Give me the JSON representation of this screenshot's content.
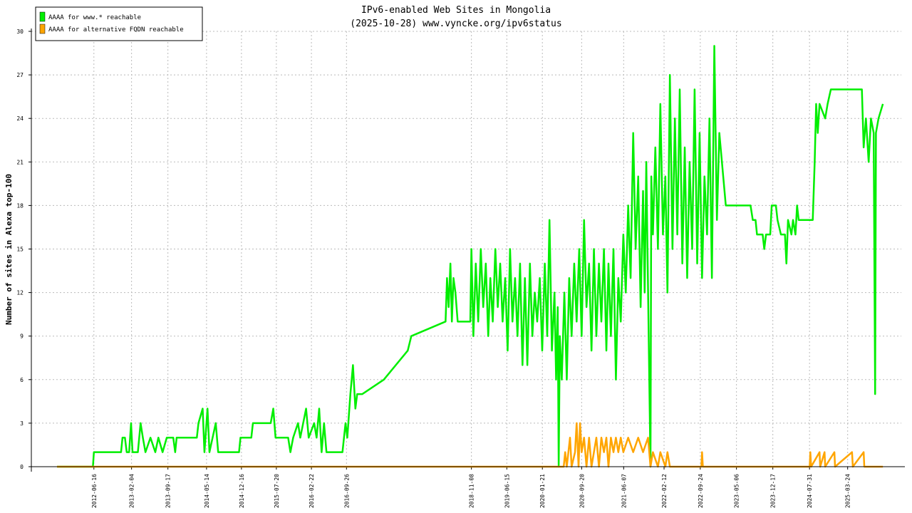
{
  "chart_data": {
    "type": "line",
    "title": "IPv6-enabled Web Sites in Mongolia",
    "subtitle": "(2025-10-28) www.vyncke.org/ipv6status",
    "y_label": "Number of sites in Alexa top-100",
    "xlim": [
      "2011-05-26",
      "2026-02-19"
    ],
    "xticks": [
      "2012-06-16",
      "2013-02-04",
      "2013-09-17",
      "2014-05-14",
      "2014-12-16",
      "2015-07-20",
      "2016-02-22",
      "2016-09-26",
      "2018-11-08",
      "2019-06-15",
      "2020-01-21",
      "2020-09-20",
      "2021-06-07",
      "2022-02-12",
      "2022-09-24",
      "2023-05-06",
      "2023-12-17",
      "2024-07-31",
      "2025-03-24"
    ],
    "ylim": [
      0,
      30
    ],
    "yticks": [
      0,
      3,
      6,
      9,
      12,
      15,
      18,
      21,
      24,
      27,
      30
    ],
    "grid": true,
    "legend": "top-left",
    "series": [
      {
        "name": "AAAA for www.* reachable",
        "color": "#00ee00",
        "x": [
          "2011-11-01",
          "2012-06-10",
          "2012-06-16",
          "2012-12-01",
          "2012-12-10",
          "2012-12-25",
          "2013-01-05",
          "2013-01-20",
          "2013-02-01",
          "2013-02-10",
          "2013-03-15",
          "2013-04-01",
          "2013-04-15",
          "2013-05-01",
          "2013-06-01",
          "2013-07-01",
          "2013-07-20",
          "2013-08-15",
          "2013-09-10",
          "2013-10-20",
          "2013-11-01",
          "2013-11-10",
          "2014-03-15",
          "2014-03-25",
          "2014-04-20",
          "2014-05-01",
          "2014-05-20",
          "2014-06-01",
          "2014-07-10",
          "2014-07-25",
          "2014-12-01",
          "2014-12-10",
          "2015-02-15",
          "2015-02-25",
          "2015-06-15",
          "2015-07-01",
          "2015-07-15",
          "2015-10-01",
          "2015-10-15",
          "2015-11-01",
          "2015-12-01",
          "2015-12-15",
          "2016-01-20",
          "2016-02-05",
          "2016-03-10",
          "2016-03-25",
          "2016-04-10",
          "2016-04-25",
          "2016-05-10",
          "2016-05-25",
          "2016-06-10",
          "2016-09-01",
          "2016-09-20",
          "2016-10-01",
          "2016-10-20",
          "2016-11-05",
          "2016-11-20",
          "2016-12-01",
          "2017-01-01",
          "2017-05-15",
          "2017-10-10",
          "2017-11-01",
          "2018-06-01",
          "2018-06-10",
          "2018-06-20",
          "2018-07-01",
          "2018-07-10",
          "2018-07-20",
          "2018-08-01",
          "2018-08-15",
          "2018-11-01",
          "2018-11-08",
          "2018-11-20",
          "2018-12-05",
          "2018-12-20",
          "2019-01-05",
          "2019-01-20",
          "2019-02-05",
          "2019-02-20",
          "2019-03-05",
          "2019-03-20",
          "2019-04-05",
          "2019-04-20",
          "2019-05-05",
          "2019-05-20",
          "2019-06-05",
          "2019-06-20",
          "2019-07-05",
          "2019-07-20",
          "2019-08-05",
          "2019-08-20",
          "2019-09-05",
          "2019-09-20",
          "2019-10-05",
          "2019-10-20",
          "2019-11-05",
          "2019-11-20",
          "2019-12-05",
          "2019-12-20",
          "2020-01-05",
          "2020-01-20",
          "2020-02-05",
          "2020-02-20",
          "2020-03-05",
          "2020-03-20",
          "2020-04-05",
          "2020-04-15",
          "2020-04-25",
          "2020-05-01",
          "2020-05-08",
          "2020-05-20",
          "2020-06-05",
          "2020-06-20",
          "2020-07-05",
          "2020-07-20",
          "2020-08-05",
          "2020-08-20",
          "2020-09-05",
          "2020-09-20",
          "2020-10-05",
          "2020-10-20",
          "2020-11-05",
          "2020-11-20",
          "2020-12-05",
          "2020-12-20",
          "2021-01-05",
          "2021-01-20",
          "2021-02-05",
          "2021-02-20",
          "2021-03-05",
          "2021-03-20",
          "2021-04-05",
          "2021-04-20",
          "2021-05-05",
          "2021-05-20",
          "2021-06-05",
          "2021-06-20",
          "2021-07-05",
          "2021-07-20",
          "2021-08-05",
          "2021-08-20",
          "2021-09-05",
          "2021-09-20",
          "2021-10-05",
          "2021-10-15",
          "2021-10-25",
          "2021-11-20",
          "2021-11-25",
          "2021-12-05",
          "2021-12-20",
          "2022-01-05",
          "2022-01-20",
          "2022-02-05",
          "2022-02-20",
          "2022-03-05",
          "2022-03-20",
          "2022-04-05",
          "2022-04-20",
          "2022-05-05",
          "2022-05-20",
          "2022-06-05",
          "2022-06-20",
          "2022-07-05",
          "2022-07-20",
          "2022-08-05",
          "2022-08-20",
          "2022-09-05",
          "2022-09-20",
          "2022-10-05",
          "2022-10-20",
          "2022-11-05",
          "2022-11-20",
          "2022-12-05",
          "2022-12-20",
          "2023-01-05",
          "2023-01-20",
          "2023-03-01",
          "2023-08-01",
          "2023-08-15",
          "2023-09-01",
          "2023-09-10",
          "2023-10-15",
          "2023-10-25",
          "2023-11-05",
          "2023-12-01",
          "2023-12-10",
          "2024-01-05",
          "2024-01-15",
          "2024-02-05",
          "2024-03-01",
          "2024-03-10",
          "2024-03-20",
          "2024-04-10",
          "2024-04-20",
          "2024-05-05",
          "2024-05-15",
          "2024-05-25",
          "2024-08-20",
          "2024-09-01",
          "2024-09-10",
          "2024-09-20",
          "2024-10-01",
          "2024-11-05",
          "2024-11-20",
          "2024-12-10",
          "2025-06-20",
          "2025-07-01",
          "2025-07-15",
          "2025-08-01",
          "2025-08-15",
          "2025-09-01",
          "2025-09-10",
          "2025-09-15",
          "2025-10-01",
          "2025-10-28"
        ],
        "values": [
          0,
          0,
          1,
          1,
          2,
          2,
          1,
          1,
          3,
          1,
          1,
          3,
          2,
          1,
          2,
          1,
          2,
          1,
          2,
          2,
          1,
          2,
          2,
          3,
          4,
          1,
          4,
          1,
          3,
          1,
          1,
          2,
          2,
          3,
          3,
          4,
          2,
          2,
          1,
          2,
          3,
          2,
          4,
          2,
          3,
          2,
          4,
          1,
          3,
          1,
          1,
          1,
          3,
          2,
          5,
          7,
          4,
          5,
          5,
          6,
          8,
          9,
          10,
          13,
          11,
          14,
          10,
          13,
          12,
          10,
          10,
          15,
          9,
          14,
          10,
          15,
          11,
          14,
          9,
          13,
          10,
          15,
          11,
          14,
          10,
          13,
          8,
          15,
          10,
          13,
          9,
          14,
          7,
          13,
          7,
          14,
          9,
          12,
          10,
          13,
          8,
          14,
          9,
          17,
          8,
          12,
          6,
          11,
          0,
          9,
          6,
          12,
          6,
          13,
          9,
          14,
          10,
          15,
          9,
          17,
          11,
          14,
          8,
          15,
          9,
          14,
          10,
          15,
          8,
          14,
          9,
          15,
          6,
          13,
          10,
          16,
          12,
          18,
          13,
          23,
          15,
          20,
          11,
          19,
          12,
          21,
          0,
          20,
          16,
          22,
          15,
          25,
          16,
          20,
          12,
          27,
          15,
          24,
          16,
          26,
          14,
          22,
          13,
          21,
          15,
          26,
          14,
          23,
          13,
          20,
          16,
          24,
          13,
          29,
          17,
          23,
          18,
          18,
          17,
          17,
          16,
          16,
          15,
          16,
          16,
          18,
          18,
          17,
          16,
          16,
          14,
          17,
          16,
          17,
          16,
          18,
          17,
          17,
          21,
          25,
          23,
          25,
          24,
          25,
          26,
          26,
          22,
          24,
          21,
          24,
          23,
          5,
          23,
          24,
          25
        ]
      },
      {
        "name": "AAAA for alternative FQDN reachable",
        "color": "#ffa500",
        "x": [
          "2011-11-01",
          "2020-06-01",
          "2020-06-10",
          "2020-06-20",
          "2020-07-10",
          "2020-07-20",
          "2020-08-10",
          "2020-08-20",
          "2020-09-01",
          "2020-09-10",
          "2020-09-20",
          "2020-10-05",
          "2020-10-20",
          "2020-11-05",
          "2020-11-20",
          "2020-12-05",
          "2020-12-20",
          "2021-01-05",
          "2021-01-20",
          "2021-02-05",
          "2021-02-20",
          "2021-03-05",
          "2021-03-20",
          "2021-04-05",
          "2021-04-20",
          "2021-05-05",
          "2021-05-20",
          "2021-06-05",
          "2021-07-05",
          "2021-08-05",
          "2021-09-05",
          "2021-10-05",
          "2021-11-05",
          "2021-11-20",
          "2021-12-05",
          "2022-01-05",
          "2022-01-20",
          "2022-02-20",
          "2022-03-05",
          "2022-03-20",
          "2022-10-01",
          "2022-10-05",
          "2022-10-10",
          "2024-08-01",
          "2024-08-05",
          "2024-08-10",
          "2024-10-01",
          "2024-10-05",
          "2024-11-01",
          "2024-11-05",
          "2025-01-01",
          "2025-01-05",
          "2025-04-20",
          "2025-04-25",
          "2025-07-01",
          "2025-07-05",
          "2025-10-28"
        ],
        "values": [
          0,
          0,
          1,
          0,
          2,
          0,
          1,
          3,
          0,
          3,
          1,
          2,
          0,
          2,
          0,
          1,
          2,
          0,
          2,
          1,
          2,
          0,
          2,
          1,
          2,
          1,
          2,
          1,
          2,
          1,
          2,
          1,
          2,
          0,
          1,
          0,
          1,
          0,
          1,
          0,
          0,
          1,
          0,
          0,
          1,
          0,
          1,
          0,
          1,
          0,
          1,
          0,
          1,
          0,
          1,
          0,
          0
        ]
      }
    ]
  }
}
